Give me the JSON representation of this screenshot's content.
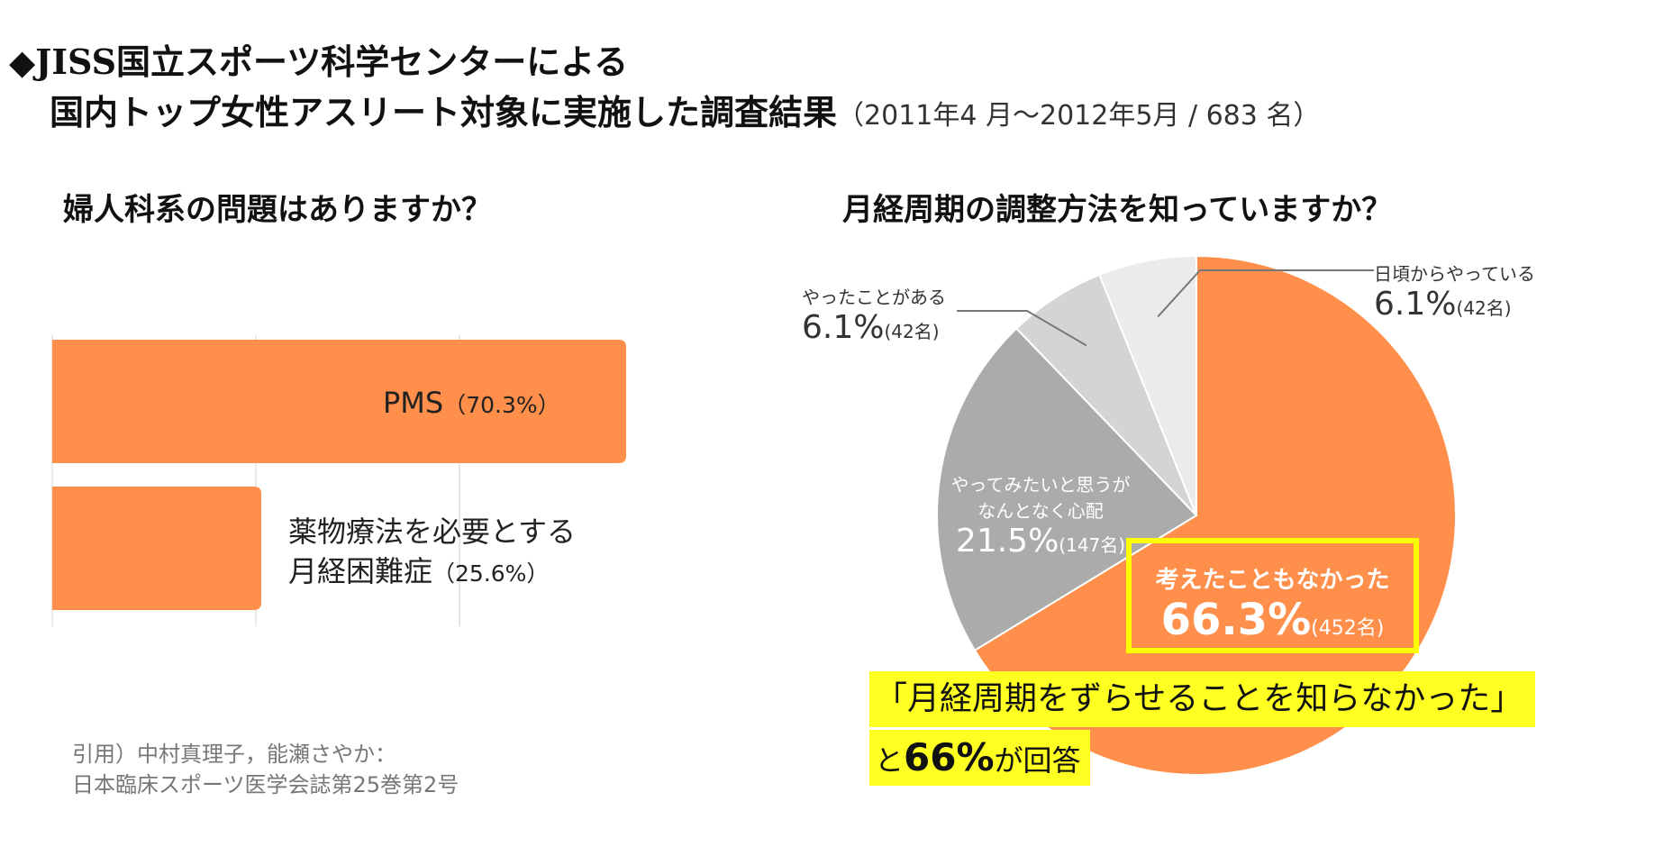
{
  "header": {
    "line1": "◆JISS国立スポーツ科学センターによる",
    "line2": "国内トップ女性アスリート対象に実施した調査結果",
    "period": "（2011年4 月〜2012年5月 / 683 名）"
  },
  "chart_data": [
    {
      "type": "bar",
      "orientation": "horizontal",
      "title": "婦人科系の問題はありますか？",
      "categories": [
        "PMS",
        "薬物療法を必要とする月経困難症"
      ],
      "values": [
        70.3,
        25.6
      ],
      "labels": [
        {
          "line1": "PMS",
          "line2": "",
          "pct": "（70.3%）"
        },
        {
          "line1": "薬物療法を必要とする",
          "line2": "月経困難症",
          "pct": "（25.6%）"
        }
      ],
      "xlim": [
        0,
        70.3
      ],
      "grid": true,
      "color": "#ff8f4a"
    },
    {
      "type": "pie",
      "title": "月経周期の調整方法を知っていますか？",
      "slices": [
        {
          "name": "考えたこともなかった",
          "value": 66.3,
          "display": "66.3%",
          "count": "(452名)",
          "color": "#ff8f4a"
        },
        {
          "name": "やってみたいと思うがなんとなく心配",
          "name_line1": "やってみたいと思うが",
          "name_line2": "なんとなく心配",
          "value": 21.5,
          "display": "21.5%",
          "count": "(147名)",
          "color": "#ababab"
        },
        {
          "name": "やったことがある",
          "value": 6.1,
          "display": "6.1%",
          "count": "(42名)",
          "color": "#d4d4d4"
        },
        {
          "name": "日頃からやっている",
          "value": 6.1,
          "display": "6.1%",
          "count": "(42名)",
          "color": "#ebebeb"
        }
      ]
    }
  ],
  "highlight": {
    "line1": "「月経周期をずらせることを知らなかった」",
    "line2_prefix": "と",
    "line2_big": "66%",
    "line2_suffix": "が回答"
  },
  "citation": {
    "line1": "引用）中村真理子，能瀬さやか：",
    "line2": "日本臨床スポーツ医学会誌第25巻第2号"
  }
}
